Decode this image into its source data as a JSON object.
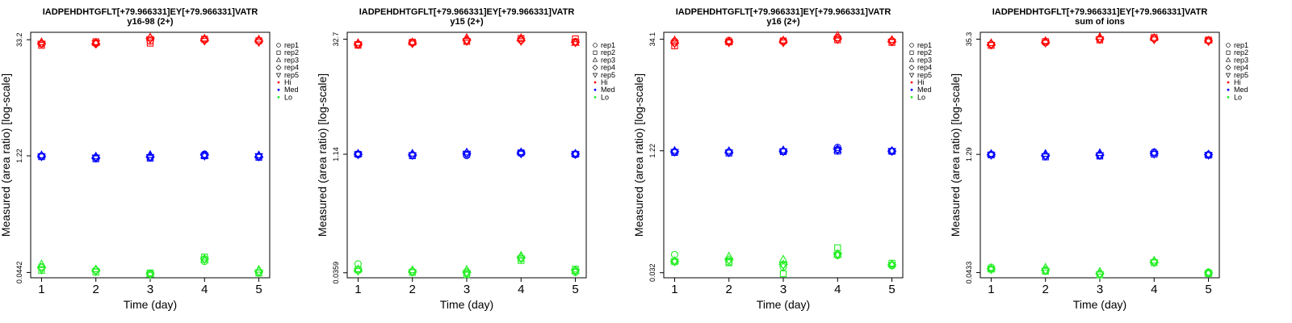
{
  "chart_data": [
    {
      "type": "scatter",
      "title_line1": "IADPEHDHTGFLT[+79.966331]EY[+79.966331]VATR",
      "title_line2": "y16-98 (2+)",
      "xlabel": "Time (day)",
      "ylabel": "Measured (area ratio) [log-scale]",
      "x_ticks": [
        "1",
        "2",
        "3",
        "4",
        "5"
      ],
      "y_ticks": [
        "0.0442",
        "1.22",
        "33.2"
      ],
      "y_tick_values": [
        0.0442,
        1.22,
        33.2
      ],
      "ylim": [
        0.038,
        41
      ],
      "xlim": [
        0.8,
        5.2
      ],
      "log_scale": true,
      "legend": [
        "rep1",
        "rep2",
        "rep3",
        "rep4",
        "rep5",
        "Hi",
        "Med",
        "Lo"
      ],
      "series": [
        {
          "name": "Hi",
          "color": "#ff0000",
          "reps": [
            [
              29.5,
              30.4,
              32.0,
              33.0,
              31.8
            ],
            [
              28.3,
              31.4,
              30.1,
              33.8,
              32.3
            ],
            [
              30.9,
              30.4,
              35.4,
              34.3,
              33.4
            ],
            [
              30.1,
              29.5,
              34.5,
              32.7,
              31.8
            ],
            [
              29.7,
              30.0,
              33.5,
              32.2,
              31.0
            ]
          ]
        },
        {
          "name": "Med",
          "color": "#0000ff",
          "reps": [
            [
              1.22,
              1.17,
              1.17,
              1.28,
              1.2
            ],
            [
              1.19,
              1.12,
              1.14,
              1.22,
              1.17
            ],
            [
              1.24,
              1.2,
              1.25,
              1.23,
              1.24
            ],
            [
              1.21,
              1.15,
              1.19,
              1.25,
              1.19
            ],
            [
              1.2,
              1.16,
              1.18,
              1.22,
              1.21
            ]
          ]
        },
        {
          "name": "Lo",
          "color": "#22ee22",
          "reps": [
            [
              0.052,
              0.0472,
              0.0427,
              0.0607,
              0.0437
            ],
            [
              0.0469,
              0.0446,
              0.0436,
              0.0686,
              0.0434
            ],
            [
              0.0558,
              0.0484,
              0.042,
              0.0632,
              0.0478
            ],
            [
              0.0505,
              0.0466,
              0.0425,
              0.065,
              0.0455
            ],
            [
              0.048,
              0.0455,
              0.0415,
              0.064,
              0.0445
            ]
          ]
        }
      ]
    },
    {
      "type": "scatter",
      "title_line1": "IADPEHDHTGFLT[+79.966331]EY[+79.966331]VATR",
      "title_line2": "y15 (2+)",
      "xlabel": "Time (day)",
      "ylabel": "Measured (area ratio) [log-scale]",
      "x_ticks": [
        "1",
        "2",
        "3",
        "4",
        "5"
      ],
      "y_ticks": [
        "0.0359",
        "1.14",
        "32.7"
      ],
      "y_tick_values": [
        0.0359,
        1.14,
        32.7
      ],
      "ylim": [
        0.031,
        40
      ],
      "xlim": [
        0.8,
        5.2
      ],
      "log_scale": true,
      "legend": [
        "rep1",
        "rep2",
        "rep3",
        "rep4",
        "rep5",
        "Hi",
        "Med",
        "Lo"
      ],
      "series": [
        {
          "name": "Hi",
          "color": "#ff0000",
          "reps": [
            [
              28.0,
              29.5,
              31.3,
              32.0,
              30.5
            ],
            [
              27.4,
              30.0,
              30.6,
              33.4,
              33.1
            ],
            [
              29.3,
              30.0,
              34.0,
              33.8,
              29.4
            ],
            [
              28.5,
              29.2,
              32.0,
              31.5,
              30.0
            ],
            [
              28.2,
              28.9,
              31.0,
              31.0,
              29.8
            ]
          ]
        },
        {
          "name": "Med",
          "color": "#0000ff",
          "reps": [
            [
              1.13,
              1.12,
              1.1,
              1.17,
              1.13
            ],
            [
              1.14,
              1.09,
              1.14,
              1.19,
              1.14
            ],
            [
              1.16,
              1.16,
              1.2,
              1.21,
              1.16
            ],
            [
              1.14,
              1.12,
              1.17,
              1.18,
              1.15
            ],
            [
              1.13,
              1.11,
              1.16,
              1.16,
              1.14
            ]
          ]
        },
        {
          "name": "Lo",
          "color": "#22ee22",
          "reps": [
            [
              0.0465,
              0.0374,
              0.0352,
              0.0542,
              0.0363
            ],
            [
              0.0391,
              0.0362,
              0.034,
              0.0513,
              0.04
            ],
            [
              0.0398,
              0.0387,
              0.0392,
              0.059,
              0.0378
            ],
            [
              0.0385,
              0.037,
              0.0365,
              0.056,
              0.0385
            ],
            [
              0.0378,
              0.0365,
              0.0358,
              0.0545,
              0.0372
            ]
          ]
        }
      ]
    },
    {
      "type": "scatter",
      "title_line1": "IADPEHDHTGFLT[+79.966331]EY[+79.966331]VATR",
      "title_line2": "y16 (2+)",
      "xlabel": "Time (day)",
      "ylabel": "Measured (area ratio) [log-scale]",
      "x_ticks": [
        "1",
        "2",
        "3",
        "4",
        "5"
      ],
      "y_ticks": [
        "0.032",
        "1.22",
        "34.1"
      ],
      "y_tick_values": [
        0.032,
        1.22,
        34.1
      ],
      "ylim": [
        0.0275,
        42
      ],
      "xlim": [
        0.8,
        5.2
      ],
      "log_scale": true,
      "legend": [
        "rep1",
        "rep2",
        "rep3",
        "rep4",
        "rep5",
        "Hi",
        "Med",
        "Lo"
      ],
      "series": [
        {
          "name": "Hi",
          "color": "#ff0000",
          "reps": [
            [
              32.0,
              33.0,
              32.0,
              36.0,
              32.5
            ],
            [
              28.0,
              31.5,
              32.5,
              33.5,
              31.0
            ],
            [
              33.0,
              32.0,
              33.0,
              38.0,
              33.5
            ],
            [
              30.5,
              31.5,
              31.5,
              34.5,
              32.0
            ],
            [
              30.0,
              31.0,
              31.0,
              34.0,
              31.8
            ]
          ]
        },
        {
          "name": "Med",
          "color": "#0000ff",
          "reps": [
            [
              1.19,
              1.18,
              1.2,
              1.35,
              1.2
            ],
            [
              1.16,
              1.14,
              1.19,
              1.21,
              1.2
            ],
            [
              1.22,
              1.21,
              1.24,
              1.25,
              1.22
            ],
            [
              1.19,
              1.17,
              1.21,
              1.28,
              1.21
            ],
            [
              1.18,
              1.16,
              1.2,
              1.24,
              1.21
            ]
          ]
        },
        {
          "name": "Lo",
          "color": "#22ee22",
          "reps": [
            [
              0.055,
              0.044,
              0.038,
              0.0535,
              0.0395
            ],
            [
              0.0445,
              0.043,
              0.031,
              0.0675,
              0.0425
            ],
            [
              0.0455,
              0.052,
              0.0475,
              0.0545,
              0.041
            ],
            [
              0.045,
              0.047,
              0.041,
              0.056,
              0.0405
            ],
            [
              0.0445,
              0.046,
              0.04,
              0.055,
              0.0402
            ]
          ]
        }
      ]
    },
    {
      "type": "scatter",
      "title_line1": "IADPEHDHTGFLT[+79.966331]EY[+79.966331]VATR",
      "title_line2": "sum of ions",
      "xlabel": "Time (day)",
      "ylabel": "Measured (area ratio) [log-scale]",
      "x_ticks": [
        "1",
        "2",
        "3",
        "4",
        "5"
      ],
      "y_ticks": [
        "0.0433",
        "1.29",
        "35.3"
      ],
      "y_tick_values": [
        0.0433,
        1.29,
        35.3
      ],
      "ylim": [
        0.0373,
        43
      ],
      "xlim": [
        0.8,
        5.2
      ],
      "log_scale": true,
      "legend": [
        "rep1",
        "rep2",
        "rep3",
        "rep4",
        "rep5",
        "Hi",
        "Med",
        "Lo"
      ],
      "series": [
        {
          "name": "Hi",
          "color": "#ff0000",
          "reps": [
            [
              30.5,
              32.0,
              35.5,
              36.0,
              34.0
            ],
            [
              29.5,
              33.0,
              34.5,
              37.0,
              34.5
            ],
            [
              31.5,
              33.5,
              37.5,
              36.5,
              34.0
            ],
            [
              30.2,
              32.2,
              35.8,
              35.5,
              33.5
            ],
            [
              30.0,
              31.8,
              35.2,
              35.0,
              33.2
            ]
          ]
        },
        {
          "name": "Med",
          "color": "#0000ff",
          "reps": [
            [
              1.29,
              1.24,
              1.25,
              1.38,
              1.28
            ],
            [
              1.27,
              1.2,
              1.23,
              1.3,
              1.26
            ],
            [
              1.31,
              1.31,
              1.34,
              1.35,
              1.29
            ],
            [
              1.28,
              1.25,
              1.27,
              1.33,
              1.28
            ],
            [
              1.27,
              1.23,
              1.26,
              1.31,
              1.27
            ]
          ]
        },
        {
          "name": "Lo",
          "color": "#22ee22",
          "reps": [
            [
              0.0505,
              0.0455,
              0.0418,
              0.059,
              0.044
            ],
            [
              0.0478,
              0.045,
              0.0404,
              0.0575,
              0.042
            ],
            [
              0.0485,
              0.05,
              0.0445,
              0.061,
              0.043
            ],
            [
              0.048,
              0.0465,
              0.042,
              0.0585,
              0.0428
            ],
            [
              0.0475,
              0.0458,
              0.0412,
              0.058,
              0.0425
            ]
          ]
        }
      ]
    }
  ]
}
